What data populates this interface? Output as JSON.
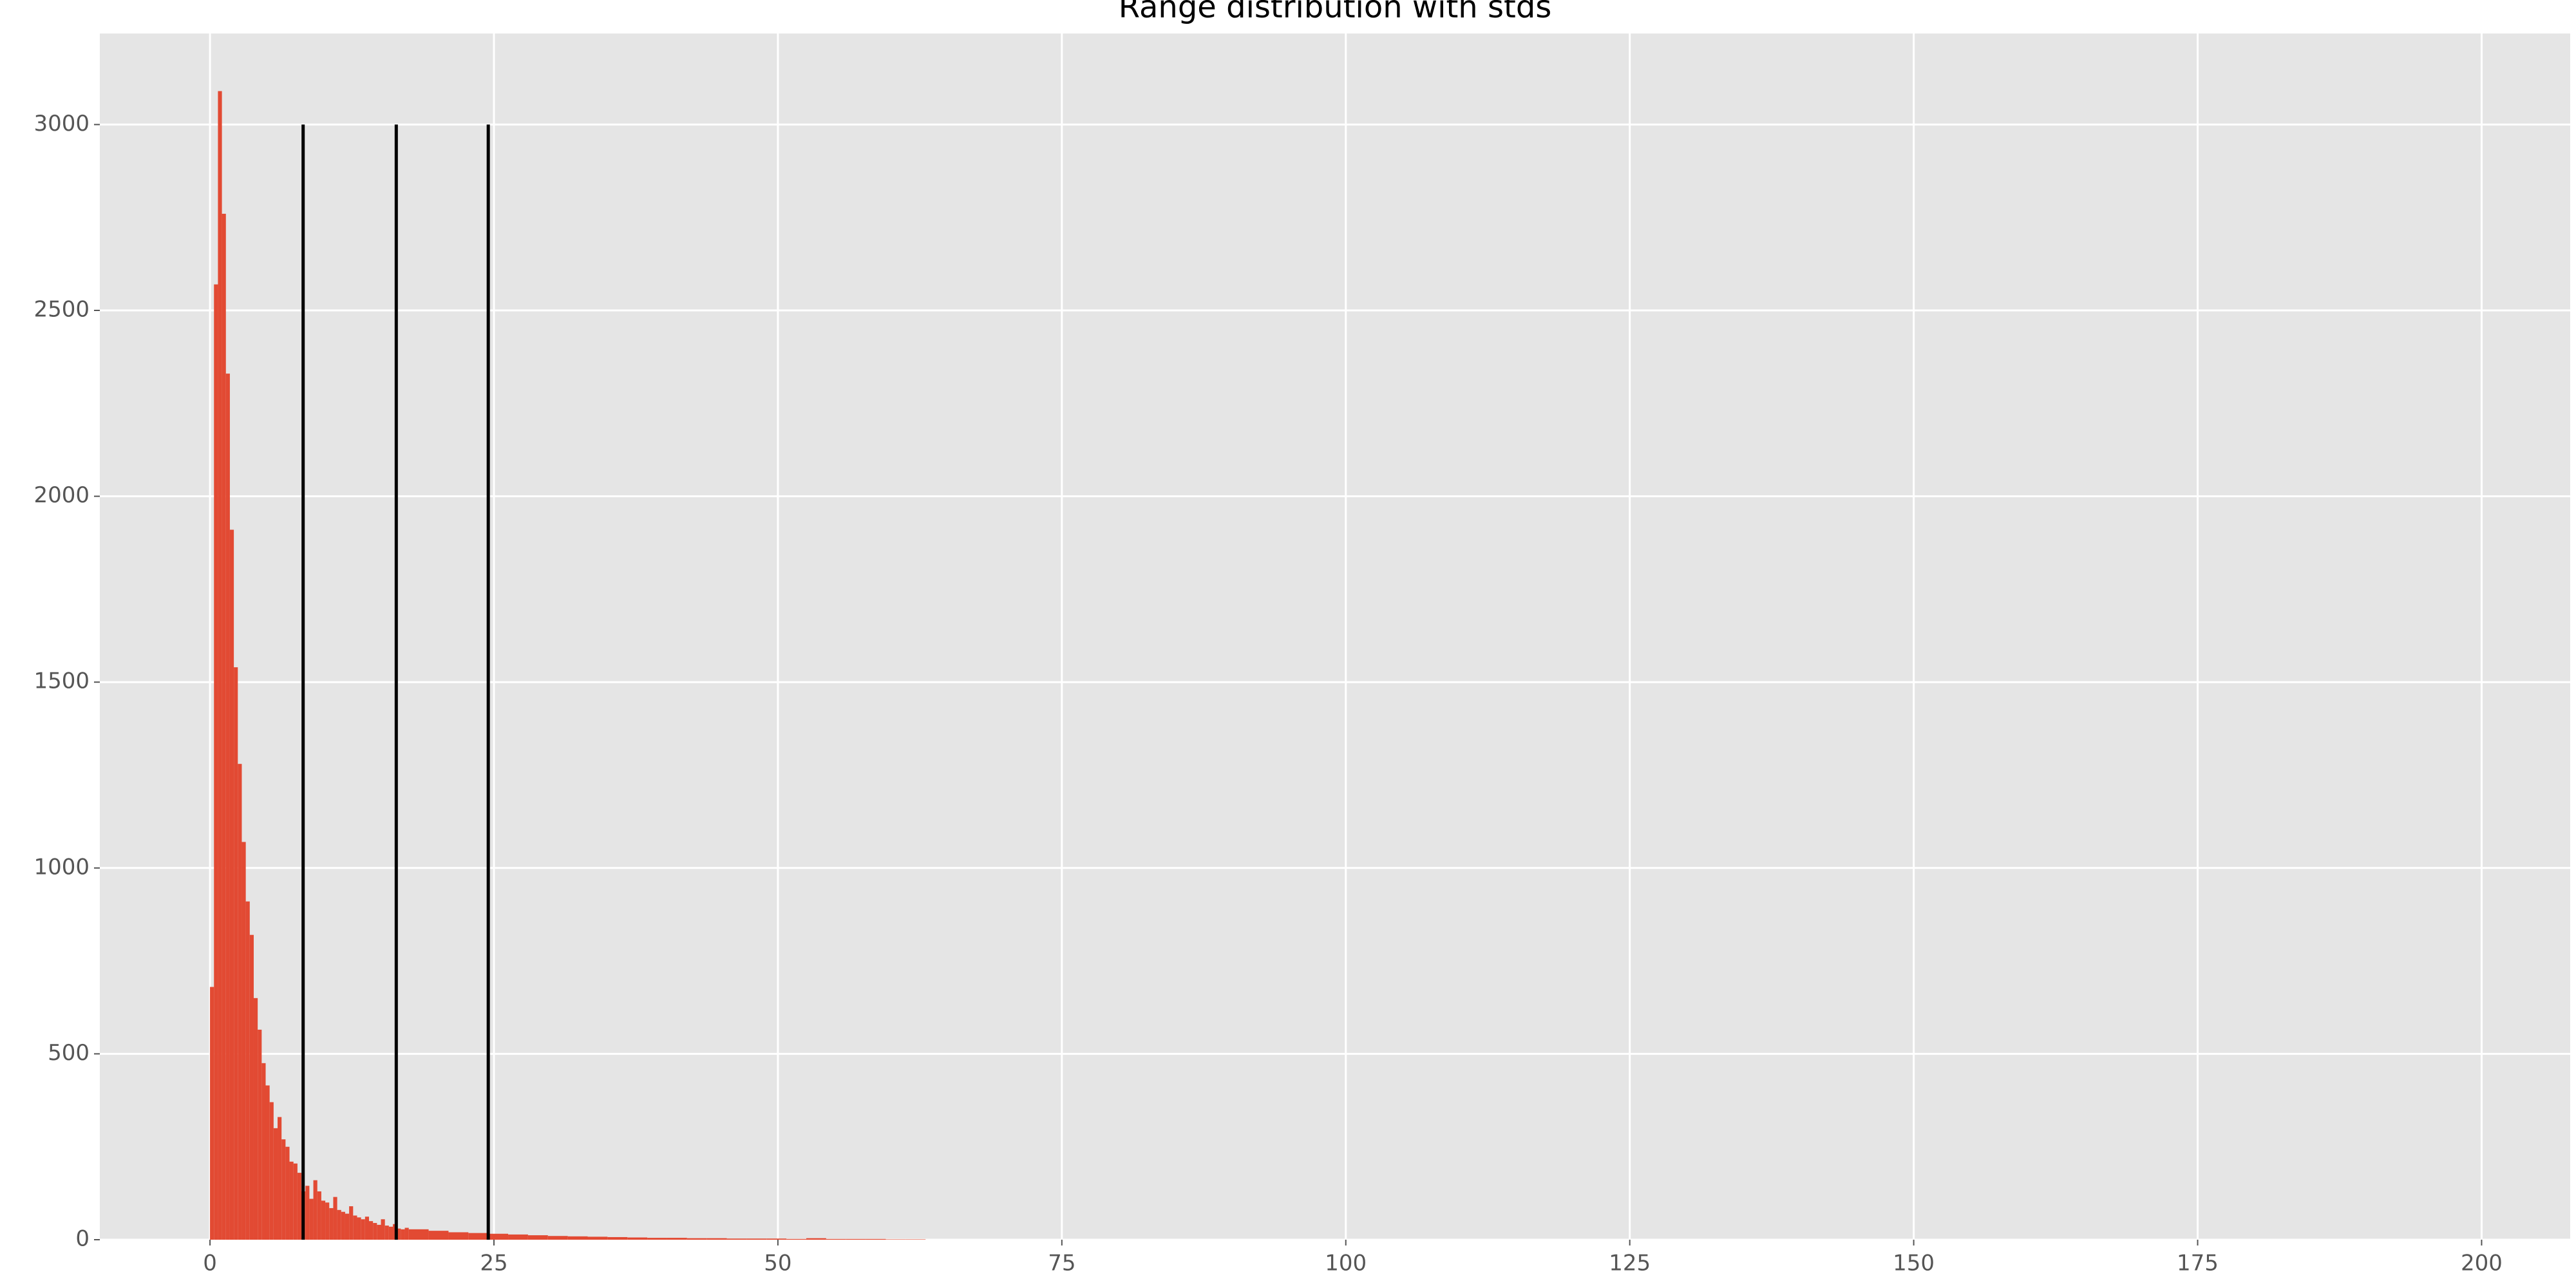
{
  "chart_data": {
    "type": "histogram",
    "title": "Range distribution with stds",
    "color": "#E24A33",
    "bins": [
      0,
      0.35,
      0.7,
      1.05,
      1.4,
      1.75,
      2.1,
      2.45,
      2.8,
      3.15,
      3.5,
      3.85,
      4.2,
      4.55,
      4.9,
      5.25,
      5.6,
      5.95,
      6.3,
      6.65,
      7,
      7.35,
      7.7,
      8.05,
      8.4,
      8.75,
      9.1,
      9.45,
      9.8,
      10.15,
      10.5,
      10.85,
      11.2,
      11.55,
      11.9,
      12.25,
      12.6,
      12.95,
      13.3,
      13.65,
      14,
      14.35,
      14.7,
      15.05,
      15.4,
      15.75,
      16.1,
      16.45,
      16.8,
      17.15,
      17.5,
      19.25,
      21,
      22.75,
      24.5,
      26.25,
      28,
      29.75,
      31.5,
      33.25,
      35,
      36.75,
      38.5,
      40.25,
      42,
      43.75,
      45.5,
      47.25,
      49,
      50.75,
      52.5,
      54.25,
      56,
      57.75,
      59.5,
      61.25,
      63
    ],
    "values": [
      680,
      2570,
      3090,
      2760,
      2330,
      1910,
      1540,
      1280,
      1070,
      910,
      820,
      650,
      565,
      475,
      415,
      370,
      300,
      330,
      270,
      250,
      210,
      205,
      180,
      130,
      145,
      110,
      160,
      130,
      105,
      100,
      85,
      115,
      80,
      75,
      70,
      90,
      65,
      60,
      55,
      62,
      50,
      45,
      40,
      55,
      38,
      35,
      42,
      30,
      28,
      32,
      28,
      24,
      20,
      18,
      16,
      14,
      12,
      10,
      9,
      8,
      7,
      6,
      5,
      5,
      4,
      4,
      3,
      3,
      3,
      2,
      4,
      2,
      2,
      2,
      1,
      1
    ],
    "vlines": {
      "x": [
        8.2,
        16.4,
        24.5
      ],
      "ymin": 0,
      "ymax": 3000,
      "color": "#000000"
    },
    "xlim": [
      -9.7,
      207.8
    ],
    "ylim": [
      0,
      3245
    ],
    "xticks": [
      0,
      25,
      50,
      75,
      100,
      125,
      150,
      175,
      200
    ],
    "yticks": [
      0,
      500,
      1000,
      1500,
      2000,
      2500,
      3000
    ],
    "grid": true,
    "background": "#E5E5E5"
  }
}
